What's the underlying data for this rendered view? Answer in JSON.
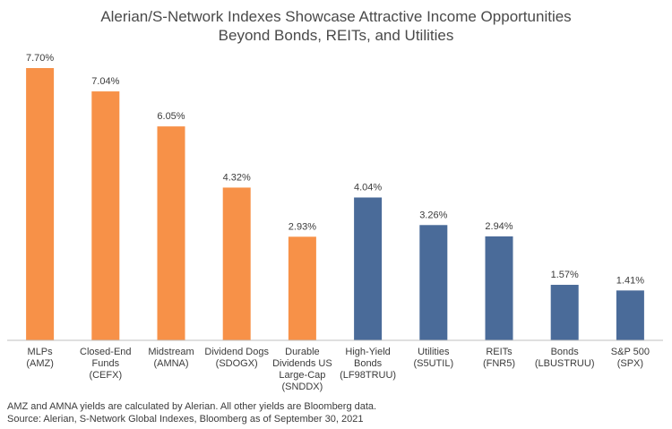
{
  "title_line1": "Alerian/S-Network Indexes Showcase Attractive Income Opportunities",
  "title_line2": "Beyond Bonds, REITs, and Utilities",
  "footnote1": "AMZ and AMNA yields are calculated by Alerian. All other yields are Bloomberg data.",
  "footnote2": "Source: Alerian, S-Network Global Indexes, Bloomberg as of September 30, 2021",
  "colors": {
    "orange": "#F79148",
    "blue": "#4A6B99",
    "axis": "#BFBFBF",
    "label": "#3B3B3B"
  },
  "chart_data": {
    "type": "bar",
    "categories": [
      [
        "MLPs",
        "(AMZ)"
      ],
      [
        "Closed-End",
        "Funds",
        "(CEFX)"
      ],
      [
        "Midstream",
        "(AMNA)"
      ],
      [
        "Dividend Dogs",
        "(SDOGX)"
      ],
      [
        "Durable",
        "Dividends US",
        "Large-Cap",
        "(SNDDX)"
      ],
      [
        "High-Yield",
        "Bonds",
        "(LF98TRUU)"
      ],
      [
        "Utilities",
        "(S5UTIL)"
      ],
      [
        "REITs",
        "(FNR5)"
      ],
      [
        "Bonds",
        "(LBUSTRUU)"
      ],
      [
        "S&P 500",
        "(SPX)"
      ]
    ],
    "values": [
      7.7,
      7.04,
      6.05,
      4.32,
      2.93,
      4.04,
      3.26,
      2.94,
      1.57,
      1.41
    ],
    "value_labels": [
      "7.70%",
      "7.04%",
      "6.05%",
      "4.32%",
      "2.93%",
      "4.04%",
      "3.26%",
      "2.94%",
      "1.57%",
      "1.41%"
    ],
    "bar_colors": [
      "orange",
      "orange",
      "orange",
      "orange",
      "orange",
      "blue",
      "blue",
      "blue",
      "blue",
      "blue"
    ],
    "ylim": [
      0,
      8
    ],
    "grid": false
  }
}
